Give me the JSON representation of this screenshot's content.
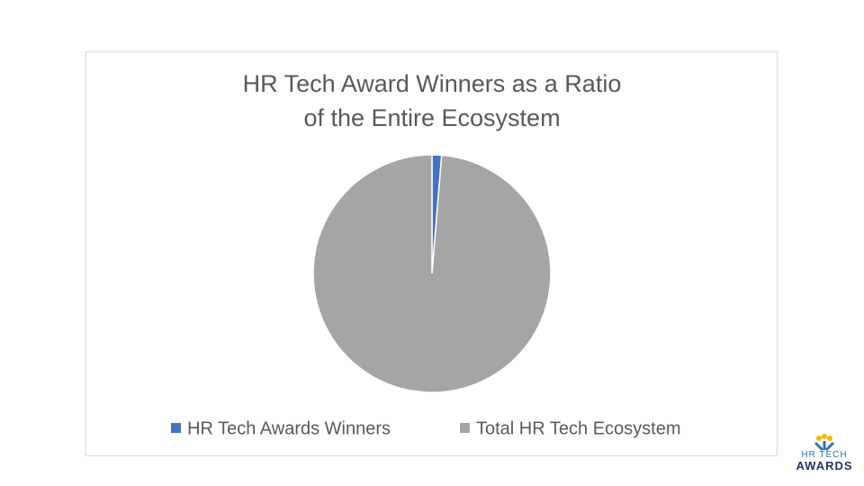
{
  "chart_data": {
    "type": "pie",
    "title": "HR Tech Award Winners as a Ratio of the Entire Ecosystem",
    "categories": [
      "HR Tech Awards Winners",
      "Total HR Tech Ecosystem"
    ],
    "values": [
      1.3,
      98.7
    ],
    "colors": [
      "#4472c4",
      "#a5a5a5"
    ],
    "legend": "bottom"
  },
  "logo": {
    "line1": "HR TECH",
    "line2": "AWARDS"
  }
}
